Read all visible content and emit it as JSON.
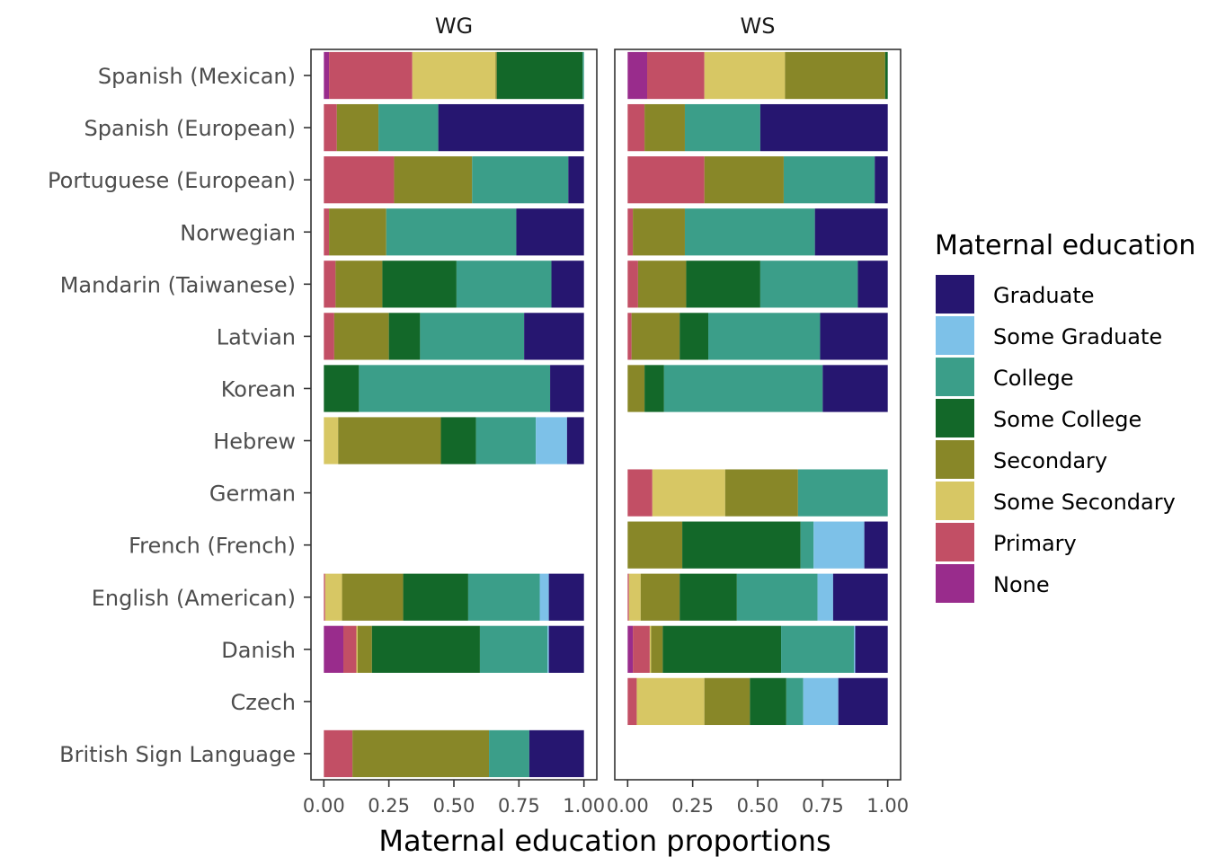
{
  "chart_data": {
    "type": "bar",
    "orientation": "horizontal",
    "stacked": true,
    "xlabel": "Maternal education proportions",
    "ylabel": "",
    "xlim": [
      0,
      1
    ],
    "x_ticks": [
      "0.00",
      "0.25",
      "0.50",
      "0.75",
      "1.00"
    ],
    "grid": false,
    "legend_position": "right",
    "legend_title": "Maternal education",
    "facets": [
      "WG",
      "WS"
    ],
    "categories": [
      "Spanish (Mexican)",
      "Spanish (European)",
      "Portuguese (European)",
      "Norwegian",
      "Mandarin (Taiwanese)",
      "Latvian",
      "Korean",
      "Hebrew",
      "German",
      "French (French)",
      "English (American)",
      "Danish",
      "Czech",
      "British Sign Language"
    ],
    "levels": [
      {
        "name": "Graduate",
        "color": "#261670"
      },
      {
        "name": "Some Graduate",
        "color": "#7DC1E8"
      },
      {
        "name": "College",
        "color": "#3B9E89"
      },
      {
        "name": "Some College",
        "color": "#136829"
      },
      {
        "name": "Secondary",
        "color": "#888728"
      },
      {
        "name": "Some Secondary",
        "color": "#D7C764"
      },
      {
        "name": "Primary",
        "color": "#C24F65"
      },
      {
        "name": "None",
        "color": "#992C8C"
      }
    ],
    "stack_order": [
      "None",
      "Primary",
      "Some Secondary",
      "Secondary",
      "Some College",
      "College",
      "Some Graduate",
      "Graduate"
    ],
    "values": {
      "WG": {
        "Spanish (Mexican)": {
          "None": 0.02,
          "Primary": 0.32,
          "Some Secondary": 0.32,
          "Secondary": 0.005,
          "Some College": 0.33,
          "College": 0.005,
          "Some Graduate": 0,
          "Graduate": 0
        },
        "Spanish (European)": {
          "None": 0,
          "Primary": 0.05,
          "Some Secondary": 0,
          "Secondary": 0.16,
          "Some College": 0,
          "College": 0.23,
          "Some Graduate": 0,
          "Graduate": 0.56
        },
        "Portuguese (European)": {
          "None": 0,
          "Primary": 0.27,
          "Some Secondary": 0,
          "Secondary": 0.3,
          "Some College": 0,
          "College": 0.37,
          "Some Graduate": 0,
          "Graduate": 0.06
        },
        "Norwegian": {
          "None": 0,
          "Primary": 0.02,
          "Some Secondary": 0,
          "Secondary": 0.22,
          "Some College": 0,
          "College": 0.5,
          "Some Graduate": 0,
          "Graduate": 0.26
        },
        "Mandarin (Taiwanese)": {
          "None": 0,
          "Primary": 0.045,
          "Some Secondary": 0,
          "Secondary": 0.18,
          "Some College": 0.285,
          "College": 0.365,
          "Some Graduate": 0,
          "Graduate": 0.125
        },
        "Latvian": {
          "None": 0,
          "Primary": 0.04,
          "Some Secondary": 0,
          "Secondary": 0.21,
          "Some College": 0.12,
          "College": 0.4,
          "Some Graduate": 0,
          "Graduate": 0.23
        },
        "Korean": {
          "None": 0,
          "Primary": 0,
          "Some Secondary": 0,
          "Secondary": 0,
          "Some College": 0.135,
          "College": 0.735,
          "Some Graduate": 0,
          "Graduate": 0.13
        },
        "Hebrew": {
          "None": 0,
          "Primary": 0,
          "Some Secondary": 0.055,
          "Secondary": 0.395,
          "Some College": 0.135,
          "College": 0.23,
          "Some Graduate": 0.12,
          "Graduate": 0.065
        },
        "German": null,
        "French (French)": null,
        "English (American)": {
          "None": 0,
          "Primary": 0.005,
          "Some Secondary": 0.065,
          "Secondary": 0.235,
          "Some College": 0.25,
          "College": 0.275,
          "Some Graduate": 0.035,
          "Graduate": 0.135
        },
        "Danish": {
          "None": 0.075,
          "Primary": 0.05,
          "Some Secondary": 0.005,
          "Secondary": 0.055,
          "Some College": 0.415,
          "College": 0.26,
          "Some Graduate": 0.005,
          "Graduate": 0.135
        },
        "Czech": null,
        "British Sign Language": {
          "None": 0,
          "Primary": 0.11,
          "Some Secondary": 0,
          "Secondary": 0.525,
          "Some College": 0,
          "College": 0.155,
          "Some Graduate": 0,
          "Graduate": 0.21
        }
      },
      "WS": {
        "Spanish (Mexican)": {
          "None": 0.075,
          "Primary": 0.22,
          "Some Secondary": 0.31,
          "Secondary": 0.385,
          "Some College": 0.01,
          "College": 0,
          "Some Graduate": 0,
          "Graduate": 0
        },
        "Spanish (European)": {
          "None": 0,
          "Primary": 0.065,
          "Some Secondary": 0,
          "Secondary": 0.155,
          "Some College": 0,
          "College": 0.29,
          "Some Graduate": 0,
          "Graduate": 0.49
        },
        "Portuguese (European)": {
          "None": 0,
          "Primary": 0.295,
          "Some Secondary": 0,
          "Secondary": 0.305,
          "Some College": 0,
          "College": 0.35,
          "Some Graduate": 0,
          "Graduate": 0.05
        },
        "Norwegian": {
          "None": 0,
          "Primary": 0.02,
          "Some Secondary": 0,
          "Secondary": 0.2,
          "Some College": 0,
          "College": 0.5,
          "Some Graduate": 0,
          "Graduate": 0.28
        },
        "Mandarin (Taiwanese)": {
          "None": 0,
          "Primary": 0.04,
          "Some Secondary": 0,
          "Secondary": 0.185,
          "Some College": 0.285,
          "College": 0.375,
          "Some Graduate": 0,
          "Graduate": 0.115
        },
        "Latvian": {
          "None": 0,
          "Primary": 0.015,
          "Some Secondary": 0,
          "Secondary": 0.185,
          "Some College": 0.11,
          "College": 0.43,
          "Some Graduate": 0,
          "Graduate": 0.26
        },
        "Korean": {
          "None": 0,
          "Primary": 0,
          "Some Secondary": 0,
          "Secondary": 0.065,
          "Some College": 0.075,
          "College": 0.61,
          "Some Graduate": 0,
          "Graduate": 0.25
        },
        "Hebrew": null,
        "German": {
          "None": 0,
          "Primary": 0.095,
          "Some Secondary": 0.28,
          "Secondary": 0.28,
          "Some College": 0,
          "College": 0.345,
          "Some Graduate": 0,
          "Graduate": 0
        },
        "French (French)": {
          "None": 0,
          "Primary": 0,
          "Some Secondary": 0,
          "Secondary": 0.21,
          "Some College": 0.455,
          "College": 0.05,
          "Some Graduate": 0.195,
          "Graduate": 0.09
        },
        "English (American)": {
          "None": 0,
          "Primary": 0.005,
          "Some Secondary": 0.045,
          "Secondary": 0.15,
          "Some College": 0.22,
          "College": 0.31,
          "Some Graduate": 0.06,
          "Graduate": 0.21
        },
        "Danish": {
          "None": 0.02,
          "Primary": 0.065,
          "Some Secondary": 0.005,
          "Secondary": 0.045,
          "Some College": 0.455,
          "College": 0.28,
          "Some Graduate": 0.005,
          "Graduate": 0.125
        },
        "Czech": {
          "None": 0,
          "Primary": 0.035,
          "Some Secondary": 0.26,
          "Secondary": 0.175,
          "Some College": 0.14,
          "College": 0.065,
          "Some Graduate": 0.135,
          "Graduate": 0.19
        },
        "British Sign Language": null
      }
    }
  }
}
